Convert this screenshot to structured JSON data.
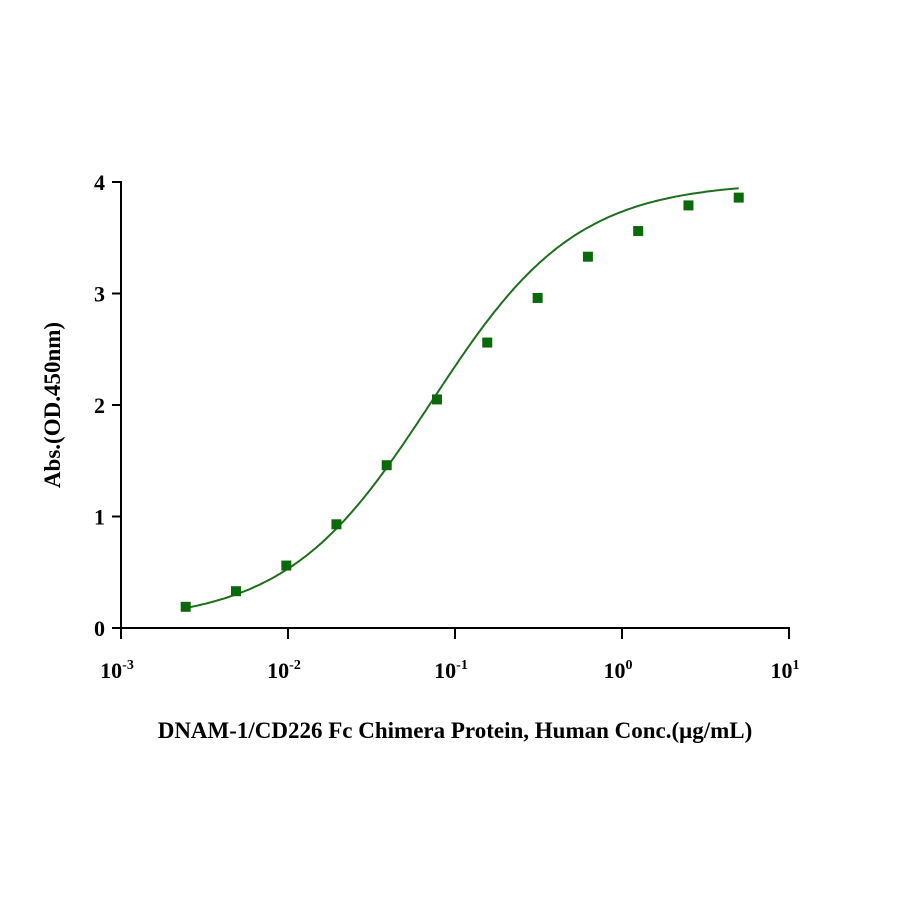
{
  "chart_data": {
    "type": "scatter",
    "title": "",
    "xlabel": "DNAM-1/CD226 Fc Chimera Protein, Human Conc.(μg/mL)",
    "ylabel": "Abs.(OD.450nm)",
    "xscale": "log",
    "xlim": [
      0.001,
      10
    ],
    "ylim": [
      0,
      4
    ],
    "x_ticks": [
      {
        "base": "10",
        "exp": "-3"
      },
      {
        "base": "10",
        "exp": "-2"
      },
      {
        "base": "10",
        "exp": "-1"
      },
      {
        "base": "10",
        "exp": "0"
      },
      {
        "base": "10",
        "exp": "1"
      }
    ],
    "x_tick_values": [
      0.001,
      0.01,
      0.1,
      1,
      10
    ],
    "y_ticks": [
      "0",
      "1",
      "2",
      "3",
      "4"
    ],
    "y_tick_values": [
      0,
      1,
      2,
      3,
      4
    ],
    "grid": false,
    "series": [
      {
        "name": "DNAM-1/CD226 Fc",
        "color": "#0a6a0a",
        "marker": "square",
        "x": [
          0.00244,
          0.00488,
          0.00977,
          0.0195,
          0.039,
          0.078,
          0.156,
          0.3125,
          0.625,
          1.25,
          2.5,
          5
        ],
        "y": [
          0.19,
          0.33,
          0.56,
          0.93,
          1.46,
          2.05,
          2.56,
          2.96,
          3.33,
          3.56,
          3.79,
          3.86
        ]
      }
    ],
    "fit": {
      "model": "4PL",
      "bottom": 0.05,
      "top": 4.0,
      "ec50": 0.072,
      "hill": 1.0,
      "color": "#1e6e1e"
    }
  }
}
